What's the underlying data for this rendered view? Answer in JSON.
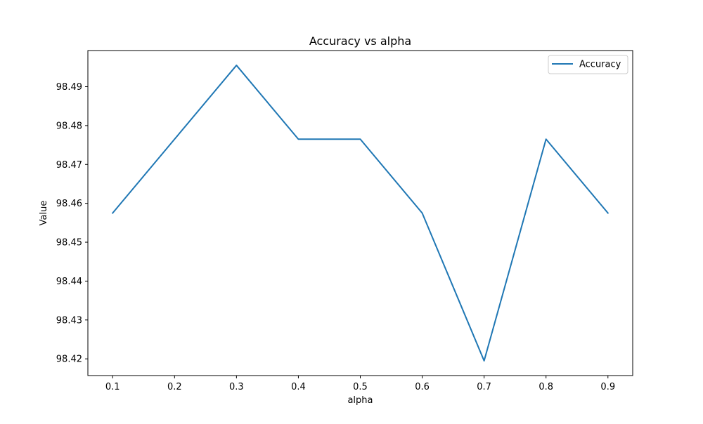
{
  "chart_data": {
    "type": "line",
    "title": "Accuracy vs alpha",
    "xlabel": "alpha",
    "ylabel": "Value",
    "x": [
      0.1,
      0.2,
      0.3,
      0.4,
      0.5,
      0.6,
      0.7,
      0.8,
      0.9
    ],
    "series": [
      {
        "name": "Accuracy",
        "color": "#1f77b4",
        "values": [
          98.4575,
          98.4765,
          98.4955,
          98.4765,
          98.4765,
          98.4575,
          98.4195,
          98.4765,
          98.4575
        ]
      }
    ],
    "xticks": [
      "0.1",
      "0.2",
      "0.3",
      "0.4",
      "0.5",
      "0.6",
      "0.7",
      "0.8",
      "0.9"
    ],
    "xtick_values": [
      0.1,
      0.2,
      0.3,
      0.4,
      0.5,
      0.6,
      0.7,
      0.8,
      0.9
    ],
    "yticks": [
      "98.42",
      "98.43",
      "98.44",
      "98.45",
      "98.46",
      "98.47",
      "98.48",
      "98.49"
    ],
    "ytick_values": [
      98.42,
      98.43,
      98.44,
      98.45,
      98.46,
      98.47,
      98.48,
      98.49
    ],
    "xlim": [
      0.06,
      0.94
    ],
    "ylim": [
      98.4157,
      98.4993
    ],
    "grid": false,
    "legend_position": "top-right"
  }
}
